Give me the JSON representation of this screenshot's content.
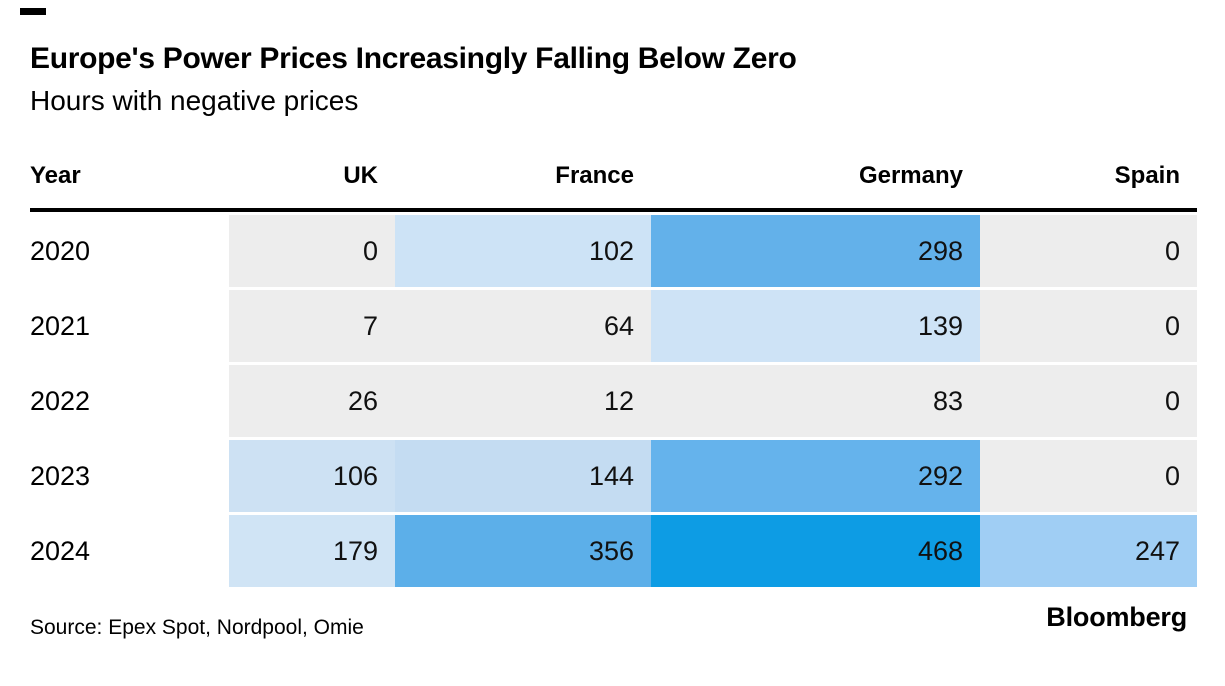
{
  "page": {
    "title": "Europe's Power Prices Increasingly Falling Below Zero",
    "subtitle": "Hours with negative prices"
  },
  "table": {
    "columns": [
      {
        "label": "Year",
        "align": "left"
      },
      {
        "label": "UK",
        "align": "right"
      },
      {
        "label": "France",
        "align": "right"
      },
      {
        "label": "Germany",
        "align": "right"
      },
      {
        "label": "Spain",
        "align": "right"
      }
    ],
    "rows": [
      {
        "year": "2020",
        "cells": [
          {
            "value": "0",
            "bg": "#ededed"
          },
          {
            "value": "102",
            "bg": "#cde3f6"
          },
          {
            "value": "298",
            "bg": "#63b1ea"
          },
          {
            "value": "0",
            "bg": "#ededed"
          }
        ]
      },
      {
        "year": "2021",
        "cells": [
          {
            "value": "7",
            "bg": "#ededed"
          },
          {
            "value": "64",
            "bg": "#ededed"
          },
          {
            "value": "139",
            "bg": "#cee3f6"
          },
          {
            "value": "0",
            "bg": "#ededed"
          }
        ]
      },
      {
        "year": "2022",
        "cells": [
          {
            "value": "26",
            "bg": "#ededed"
          },
          {
            "value": "12",
            "bg": "#ededed"
          },
          {
            "value": "83",
            "bg": "#ededed"
          },
          {
            "value": "0",
            "bg": "#ededed"
          }
        ]
      },
      {
        "year": "2023",
        "cells": [
          {
            "value": "106",
            "bg": "#cde1f3"
          },
          {
            "value": "144",
            "bg": "#c4dcf2"
          },
          {
            "value": "292",
            "bg": "#65b3ec"
          },
          {
            "value": "0",
            "bg": "#ededed"
          }
        ]
      },
      {
        "year": "2024",
        "cells": [
          {
            "value": "179",
            "bg": "#d0e4f5"
          },
          {
            "value": "356",
            "bg": "#5cafe9"
          },
          {
            "value": "468",
            "bg": "#0d9ce4"
          },
          {
            "value": "247",
            "bg": "#a0cef4"
          }
        ]
      }
    ]
  },
  "footer": {
    "source": "Source: Epex Spot, Nordpool, Omie",
    "brand": "Bloomberg"
  },
  "chart_data": {
    "type": "heatmap",
    "title": "Europe's Power Prices Increasingly Falling Below Zero",
    "subtitle": "Hours with negative prices",
    "rows": [
      "2020",
      "2021",
      "2022",
      "2023",
      "2024"
    ],
    "columns": [
      "UK",
      "France",
      "Germany",
      "Spain"
    ],
    "values": [
      [
        0,
        102,
        298,
        0
      ],
      [
        7,
        64,
        139,
        0
      ],
      [
        26,
        12,
        83,
        0
      ],
      [
        106,
        144,
        292,
        0
      ],
      [
        179,
        356,
        468,
        247
      ]
    ],
    "value_unit": "hours",
    "palette": {
      "zero_or_low": "#ededed",
      "low": "#cde3f6",
      "mid": "#63b1ea",
      "high": "#0d9ce4"
    },
    "legend": "off",
    "source": "Source: Epex Spot, Nordpool, Omie",
    "brand": "Bloomberg"
  }
}
